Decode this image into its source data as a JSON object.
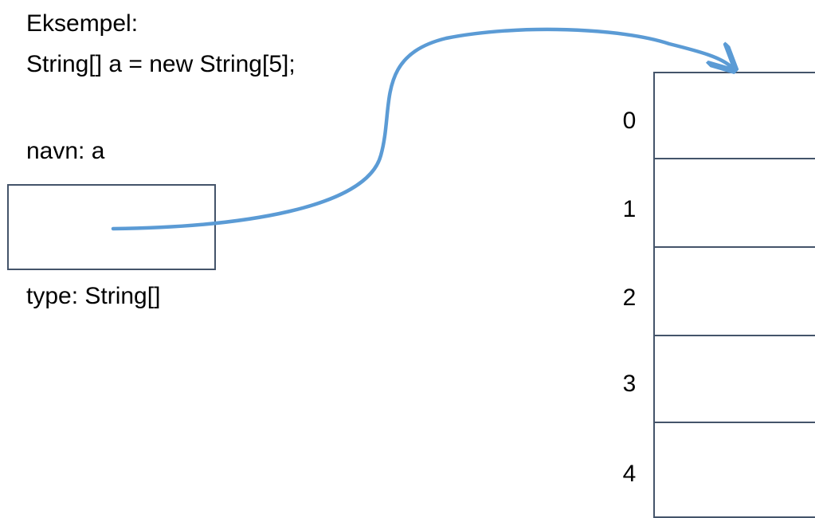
{
  "example": {
    "title": "Eksempel:",
    "code": "String[] a = new String[5];"
  },
  "variable": {
    "name_label": "navn: a",
    "type_label": "type: String[]"
  },
  "array": {
    "indices": [
      "0",
      "1",
      "2",
      "3",
      "4"
    ]
  },
  "colors": {
    "arrow": "#5b9bd5",
    "box_border": "#44546a"
  }
}
